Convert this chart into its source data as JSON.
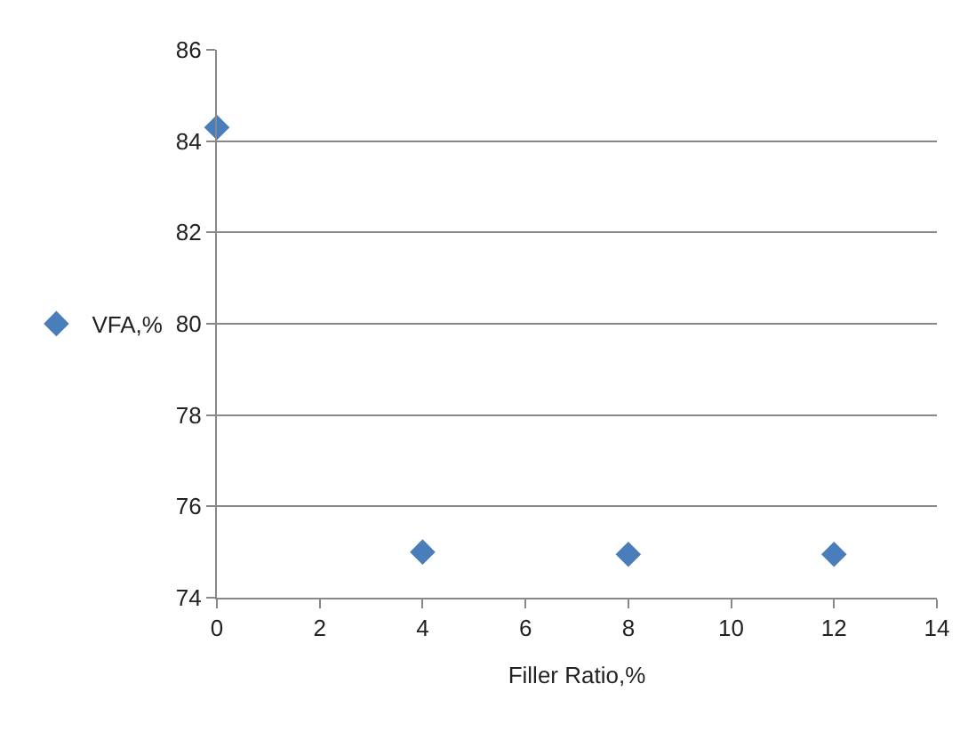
{
  "chart_data": {
    "type": "scatter",
    "xlabel": "Filler Ratio,%",
    "x": [
      0,
      4,
      8,
      12
    ],
    "series": [
      {
        "name": "VFA,%",
        "color": "#4a7ebb",
        "values": [
          84.3,
          75.0,
          74.95,
          74.95
        ]
      }
    ],
    "xlim": [
      0,
      14
    ],
    "xticks": [
      0,
      2,
      4,
      6,
      8,
      10,
      12,
      14
    ],
    "ylim": [
      74,
      86
    ],
    "yticks": [
      74,
      76,
      78,
      80,
      82,
      84,
      86
    ],
    "grid": "y",
    "legend": "left",
    "marker": "diamond"
  }
}
